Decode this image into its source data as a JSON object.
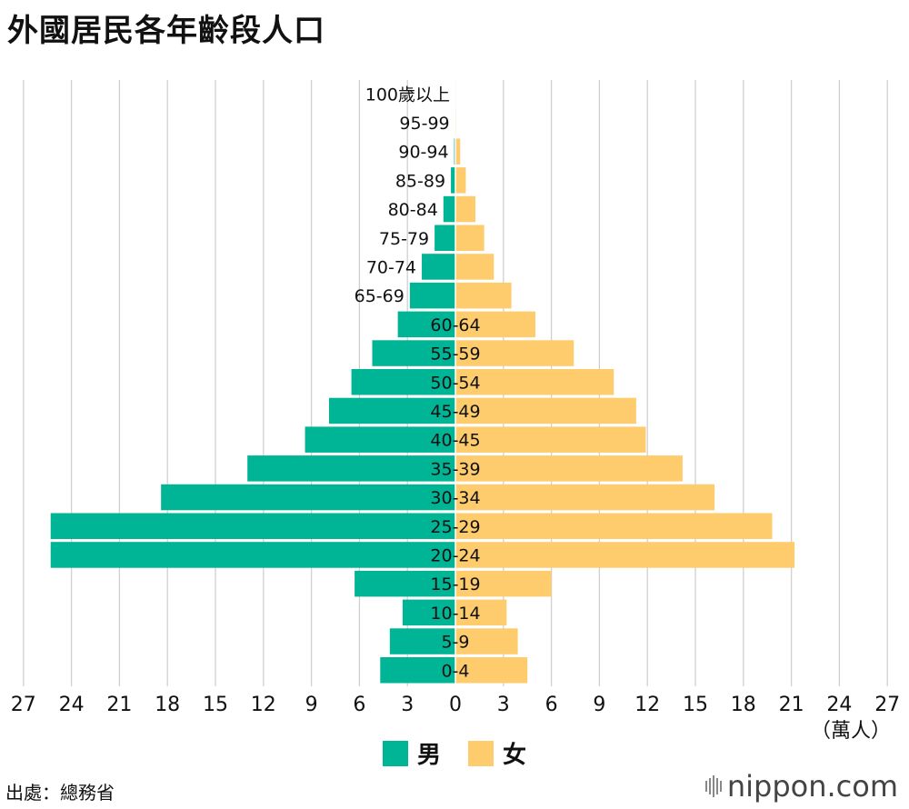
{
  "title": "外國居民各年齡段人口",
  "unit": "（萬人）",
  "source": "出處：總務省",
  "logo": {
    "text": "nippon.com",
    "mark": "nippon-bars-icon"
  },
  "colors": {
    "male": "#00b496",
    "female": "#fecb6d",
    "grid": "#d0d0d0"
  },
  "chart_data": {
    "type": "bar",
    "subtype": "population-pyramid",
    "orientation": "horizontal",
    "x_ticks": [
      "27",
      "24",
      "21",
      "18",
      "15",
      "12",
      "9",
      "6",
      "3",
      "0",
      "3",
      "6",
      "9",
      "12",
      "15",
      "18",
      "21",
      "24",
      "27"
    ],
    "xlim": [
      -27,
      27
    ],
    "categories": [
      "100歲以上",
      "95-99",
      "90-94",
      "85-89",
      "80-84",
      "75-79",
      "70-74",
      "65-69",
      "60-64",
      "55-59",
      "50-54",
      "45-49",
      "40-45",
      "35-39",
      "30-34",
      "25-29",
      "20-24",
      "15-19",
      "10-14",
      "5-9",
      "0-4"
    ],
    "series": [
      {
        "name": "男",
        "values": [
          0,
          0.02,
          0.08,
          0.28,
          0.75,
          1.3,
          2.1,
          2.85,
          3.6,
          5.2,
          6.5,
          7.9,
          9.4,
          13.0,
          18.4,
          25.3,
          25.3,
          6.3,
          3.3,
          4.1,
          4.7
        ]
      },
      {
        "name": "女",
        "values": [
          0.01,
          0.05,
          0.3,
          0.65,
          1.25,
          1.8,
          2.4,
          3.5,
          5.0,
          7.4,
          9.9,
          11.3,
          11.9,
          14.2,
          16.2,
          19.8,
          21.2,
          6.0,
          3.2,
          3.9,
          4.5
        ]
      }
    ],
    "legend": [
      "男",
      "女"
    ],
    "legend_position": "bottom",
    "grid": true
  }
}
